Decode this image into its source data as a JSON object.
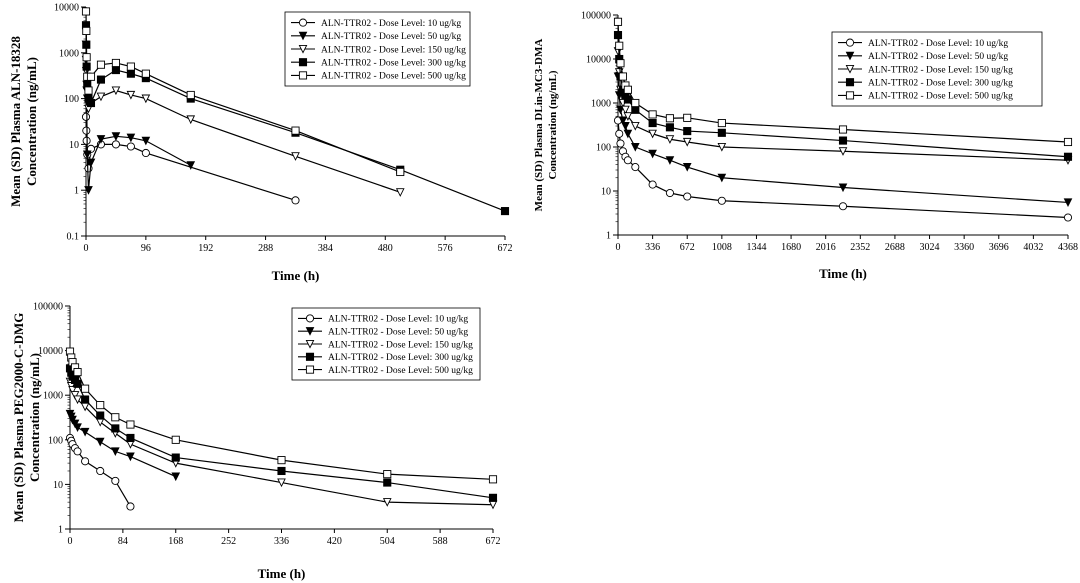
{
  "chart_data": [
    {
      "type": "line",
      "title": "",
      "xlabel": "Time (h)",
      "ylabel_lines": [
        "Mean (SD) Plasma ALN-18328",
        "Concentration (ng/mL)"
      ],
      "y_scale": "log",
      "xlim": [
        0,
        672
      ],
      "ylim": [
        0.1,
        10000
      ],
      "x_ticks": [
        0,
        96,
        192,
        288,
        384,
        480,
        576,
        672
      ],
      "y_ticks": [
        0.1,
        1,
        10,
        100,
        1000,
        10000
      ],
      "y_tick_labels": [
        "0.1",
        "1",
        "10",
        "100",
        "1000",
        "10000"
      ],
      "legend_position": "top-right",
      "series": [
        {
          "name": "ALN-TTR02 - Dose Level: 10 ug/kg",
          "marker": "circle-open",
          "x": [
            0,
            0.5,
            1,
            2,
            4,
            8,
            24,
            48,
            72,
            96,
            336
          ],
          "y": [
            40,
            20,
            12,
            6,
            3,
            8,
            10,
            10,
            9,
            6.5,
            0.6
          ]
        },
        {
          "name": "ALN-TTR02 - Dose Level: 50 ug/kg",
          "marker": "triangle-down-filled",
          "x": [
            0,
            0.5,
            1,
            2,
            4,
            8,
            24,
            48,
            72,
            96,
            168
          ],
          "y": [
            700,
            400,
            150,
            6,
            1,
            4,
            13,
            15,
            14,
            12,
            3.5
          ]
        },
        {
          "name": "ALN-TTR02 - Dose Level: 150 ug/kg",
          "marker": "triangle-down-open",
          "x": [
            0,
            0.5,
            1,
            2,
            4,
            8,
            24,
            48,
            72,
            96,
            168,
            336,
            504
          ],
          "y": [
            1500,
            400,
            200,
            100,
            60,
            80,
            110,
            150,
            120,
            100,
            35,
            5.5,
            0.9
          ]
        },
        {
          "name": "ALN-TTR02 - Dose Level: 300 ug/kg",
          "marker": "square-filled",
          "x": [
            0,
            0.5,
            1,
            2,
            4,
            8,
            24,
            48,
            72,
            96,
            168,
            336,
            504,
            672
          ],
          "y": [
            4000,
            1500,
            500,
            200,
            100,
            80,
            260,
            420,
            350,
            280,
            100,
            18,
            2.8,
            0.35
          ]
        },
        {
          "name": "ALN-TTR02 - Dose Level: 500 ug/kg",
          "marker": "square-open",
          "x": [
            0,
            0.5,
            1,
            2,
            4,
            8,
            24,
            48,
            72,
            96,
            168,
            336,
            504
          ],
          "y": [
            8000,
            3000,
            800,
            300,
            150,
            300,
            550,
            600,
            500,
            350,
            120,
            20,
            2.5
          ]
        }
      ]
    },
    {
      "type": "line",
      "title": "",
      "xlabel": "Time (h)",
      "ylabel_lines": [
        "Mean (SD) Plasma DLin-MC3-DMA",
        "Concentration (ng/mL)"
      ],
      "y_scale": "log",
      "xlim": [
        0,
        4368
      ],
      "ylim": [
        1,
        100000
      ],
      "x_ticks": [
        0,
        336,
        672,
        1008,
        1344,
        1680,
        2016,
        2352,
        2688,
        3024,
        3360,
        3696,
        4032,
        4368
      ],
      "y_ticks": [
        1,
        10,
        100,
        1000,
        10000,
        100000
      ],
      "y_tick_labels": [
        "1",
        "10",
        "100",
        "1000",
        "10000",
        "100000"
      ],
      "legend_position": "top-right",
      "series": [
        {
          "name": "ALN-TTR02 - Dose Level: 10 ug/kg",
          "marker": "circle-open",
          "x": [
            0,
            12,
            24,
            48,
            72,
            96,
            168,
            336,
            504,
            672,
            1008,
            2184,
            4368
          ],
          "y": [
            400,
            200,
            120,
            80,
            60,
            50,
            35,
            14,
            9,
            7.5,
            6,
            4.5,
            2.5
          ]
        },
        {
          "name": "ALN-TTR02 - Dose Level: 50 ug/kg",
          "marker": "triangle-down-filled",
          "x": [
            0,
            12,
            24,
            48,
            72,
            96,
            168,
            336,
            504,
            672,
            1008,
            2184,
            4368
          ],
          "y": [
            4000,
            1500,
            700,
            400,
            300,
            200,
            100,
            70,
            50,
            35,
            20,
            12,
            5.5
          ]
        },
        {
          "name": "ALN-TTR02 - Dose Level: 150 ug/kg",
          "marker": "triangle-down-open",
          "x": [
            0,
            12,
            24,
            48,
            72,
            96,
            168,
            336,
            504,
            672,
            1008,
            2184,
            4368
          ],
          "y": [
            15000,
            5000,
            2000,
            1000,
            700,
            500,
            300,
            200,
            150,
            130,
            100,
            80,
            50
          ]
        },
        {
          "name": "ALN-TTR02 - Dose Level: 300 ug/kg",
          "marker": "square-filled",
          "x": [
            0,
            12,
            24,
            48,
            72,
            96,
            168,
            336,
            504,
            672,
            1008,
            2184,
            4368
          ],
          "y": [
            35000,
            10000,
            4000,
            2000,
            1500,
            1200,
            700,
            350,
            280,
            230,
            210,
            140,
            60
          ]
        },
        {
          "name": "ALN-TTR02 - Dose Level: 500 ug/kg",
          "marker": "square-open",
          "x": [
            0,
            12,
            24,
            48,
            72,
            96,
            168,
            336,
            504,
            672,
            1008,
            2184,
            4368
          ],
          "y": [
            70000,
            20000,
            8000,
            4000,
            2500,
            2000,
            1000,
            550,
            450,
            460,
            350,
            250,
            130
          ]
        }
      ]
    },
    {
      "type": "line",
      "title": "",
      "xlabel": "Time (h)",
      "ylabel_lines": [
        "Mean (SD) Plasma PEG2000-C-DMG",
        "Concentration (ng/mL)"
      ],
      "y_scale": "log",
      "xlim": [
        0,
        672
      ],
      "ylim": [
        1,
        100000
      ],
      "x_ticks": [
        0,
        84,
        168,
        252,
        336,
        420,
        504,
        588,
        672
      ],
      "y_ticks": [
        1,
        10,
        100,
        1000,
        10000,
        100000
      ],
      "y_tick_labels": [
        "1",
        "10",
        "100",
        "1000",
        "10000",
        "100000"
      ],
      "legend_position": "top-right",
      "series": [
        {
          "name": "ALN-TTR02 - Dose Level: 10 ug/kg",
          "marker": "circle-open",
          "x": [
            0,
            2,
            4,
            8,
            12,
            24,
            48,
            72,
            96
          ],
          "y": [
            110,
            95,
            80,
            65,
            55,
            33,
            20,
            12,
            3.2
          ]
        },
        {
          "name": "ALN-TTR02 - Dose Level: 50 ug/kg",
          "marker": "triangle-down-filled",
          "x": [
            0,
            2,
            4,
            8,
            12,
            24,
            48,
            72,
            96,
            168
          ],
          "y": [
            380,
            330,
            280,
            230,
            190,
            150,
            90,
            55,
            42,
            15
          ]
        },
        {
          "name": "ALN-TTR02 - Dose Level: 150 ug/kg",
          "marker": "triangle-down-open",
          "x": [
            0,
            2,
            4,
            8,
            12,
            24,
            48,
            72,
            96,
            168,
            336,
            504,
            672
          ],
          "y": [
            2000,
            1600,
            1300,
            1000,
            800,
            550,
            250,
            140,
            80,
            30,
            11,
            4,
            3.5
          ]
        },
        {
          "name": "ALN-TTR02 - Dose Level: 300 ug/kg",
          "marker": "square-filled",
          "x": [
            0,
            2,
            4,
            8,
            12,
            24,
            48,
            72,
            96,
            168,
            336,
            504,
            672
          ],
          "y": [
            4000,
            3200,
            2600,
            2200,
            1800,
            800,
            350,
            180,
            110,
            40,
            20,
            11,
            5
          ]
        },
        {
          "name": "ALN-TTR02 - Dose Level: 500 ug/kg",
          "marker": "square-open",
          "x": [
            0,
            2,
            4,
            8,
            12,
            24,
            48,
            72,
            96,
            168,
            336,
            504,
            672
          ],
          "y": [
            9500,
            7000,
            5500,
            4200,
            3300,
            1400,
            600,
            320,
            220,
            100,
            35,
            17,
            13
          ]
        }
      ]
    }
  ]
}
